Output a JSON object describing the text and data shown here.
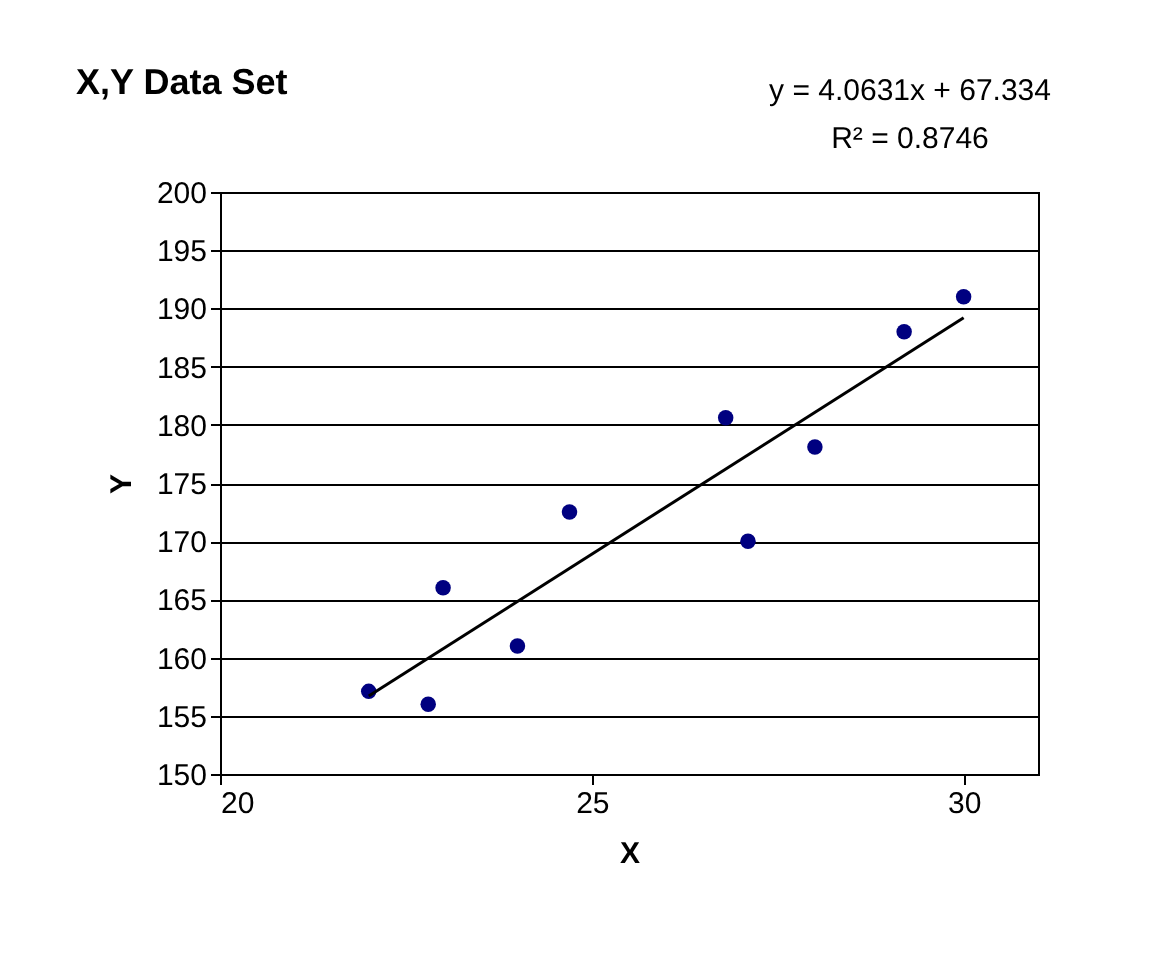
{
  "chart_data": {
    "type": "scatter",
    "title": "X,Y Data Set",
    "xlabel": "X",
    "ylabel": "Y",
    "annotations": [
      "y = 4.0631x + 67.334",
      "R² = 0.8746"
    ],
    "xlim": [
      20,
      31
    ],
    "xticks": [
      20,
      25,
      30
    ],
    "ylim": [
      150,
      200
    ],
    "yticks": [
      150,
      155,
      160,
      165,
      170,
      175,
      180,
      185,
      190,
      195,
      200
    ],
    "grid": "y",
    "marker": "circle",
    "series": [
      {
        "color": "#000080",
        "x": [
          22,
          22.8,
          23,
          24,
          24.7,
          26.8,
          27.1,
          28,
          29.2,
          30
        ],
        "values": [
          157.1,
          156,
          166,
          161,
          172.5,
          180.6,
          170,
          178.1,
          188,
          191
        ]
      },
      {
        "type": "line",
        "color": "#000000",
        "x": [
          22,
          30
        ],
        "values": [
          156.7,
          189.2
        ],
        "marker": "none",
        "line_style": "solid"
      }
    ]
  }
}
